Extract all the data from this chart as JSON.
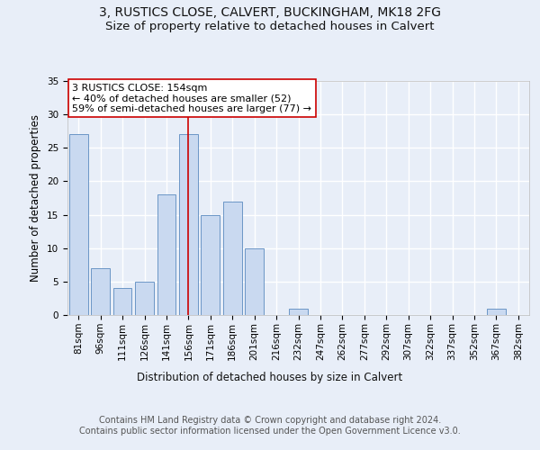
{
  "title1": "3, RUSTICS CLOSE, CALVERT, BUCKINGHAM, MK18 2FG",
  "title2": "Size of property relative to detached houses in Calvert",
  "xlabel": "Distribution of detached houses by size in Calvert",
  "ylabel": "Number of detached properties",
  "categories": [
    "81sqm",
    "96sqm",
    "111sqm",
    "126sqm",
    "141sqm",
    "156sqm",
    "171sqm",
    "186sqm",
    "201sqm",
    "216sqm",
    "232sqm",
    "247sqm",
    "262sqm",
    "277sqm",
    "292sqm",
    "307sqm",
    "322sqm",
    "337sqm",
    "352sqm",
    "367sqm",
    "382sqm"
  ],
  "values": [
    27,
    7,
    4,
    5,
    18,
    27,
    15,
    17,
    10,
    0,
    1,
    0,
    0,
    0,
    0,
    0,
    0,
    0,
    0,
    1,
    0
  ],
  "bar_color": "#c9d9f0",
  "bar_edge_color": "#5a8abf",
  "vline_index": 5,
  "vline_color": "#cc0000",
  "annotation_text": "3 RUSTICS CLOSE: 154sqm\n← 40% of detached houses are smaller (52)\n59% of semi-detached houses are larger (77) →",
  "annotation_box_color": "#ffffff",
  "annotation_box_edge_color": "#cc0000",
  "ylim": [
    0,
    35
  ],
  "yticks": [
    0,
    5,
    10,
    15,
    20,
    25,
    30,
    35
  ],
  "footer_text": "Contains HM Land Registry data © Crown copyright and database right 2024.\nContains public sector information licensed under the Open Government Licence v3.0.",
  "bg_color": "#e8eef8",
  "plot_bg_color": "#e8eef8",
  "grid_color": "#ffffff",
  "title_fontsize": 10,
  "subtitle_fontsize": 9.5,
  "axis_label_fontsize": 8.5,
  "tick_fontsize": 7.5,
  "annotation_fontsize": 8,
  "footer_fontsize": 7
}
